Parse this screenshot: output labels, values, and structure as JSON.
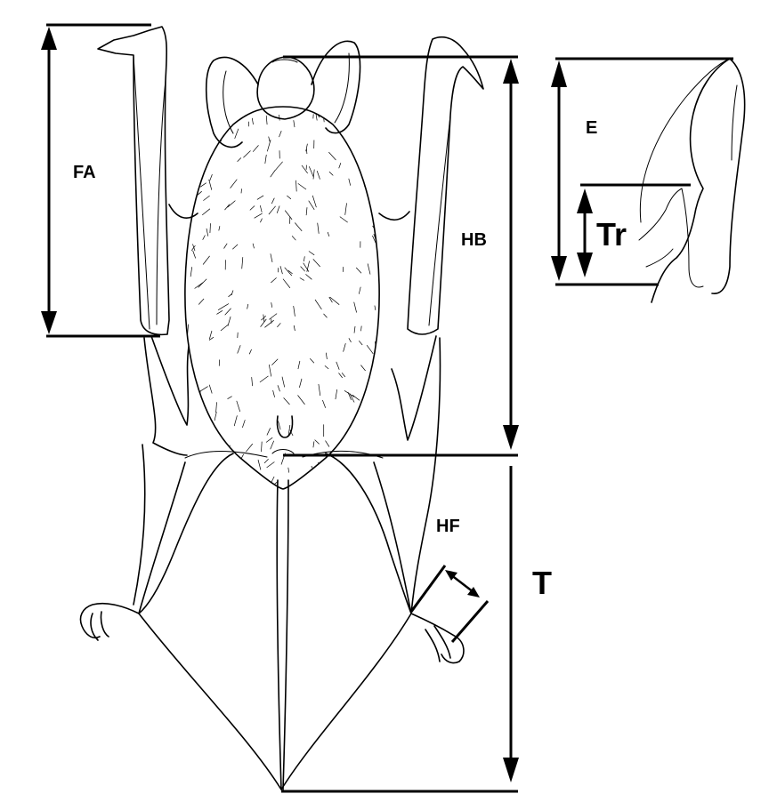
{
  "labels": {
    "forearm": "FA",
    "head_body": "HB",
    "ear": "E",
    "tragus": "Tr",
    "hind_foot": "HF",
    "tail": "T"
  },
  "colors": {
    "ink": "#000000",
    "background": "#ffffff"
  }
}
